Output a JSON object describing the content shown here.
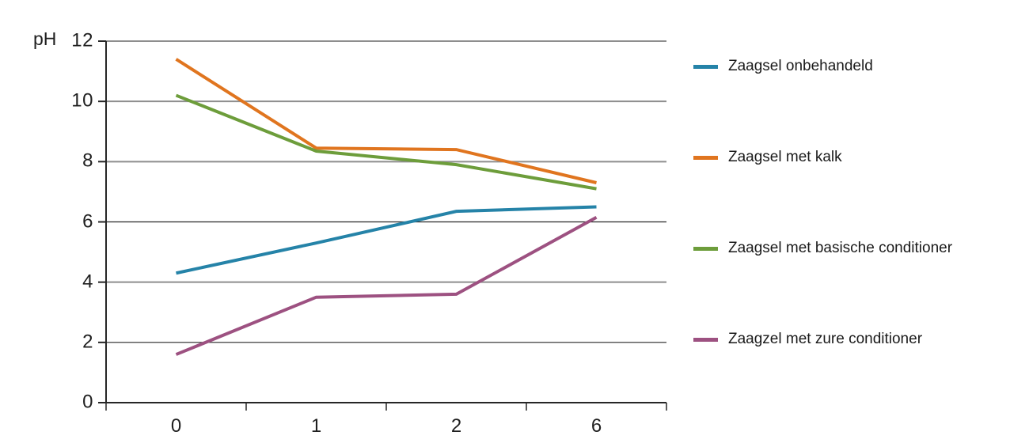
{
  "chart_data": {
    "type": "line",
    "title": "",
    "ylabel": "pH",
    "xlabel": "",
    "x_categories": [
      "0",
      "1",
      "2",
      "6"
    ],
    "y_ticks": [
      12,
      10,
      8,
      6,
      4,
      2,
      0
    ],
    "ylim": [
      0,
      12
    ],
    "grid": true,
    "legend_position": "right",
    "colors": {
      "grid_gray": "#8e8e8e",
      "grid_dark": "#262626",
      "axis": "#262626",
      "text": "#1f1f1f"
    },
    "series": [
      {
        "name": "Zaagsel onbehandeld",
        "color": "#2583a8",
        "values": [
          4.3,
          5.3,
          6.35,
          6.5
        ]
      },
      {
        "name": "Zaagsel met kalk",
        "color": "#e0751f",
        "values": [
          11.4,
          8.45,
          8.4,
          7.3
        ]
      },
      {
        "name": "Zaagsel met basische conditioner",
        "color": "#6d9d3b",
        "values": [
          10.2,
          8.35,
          7.9,
          7.1
        ]
      },
      {
        "name": "Zaagzel met zure conditioner",
        "color": "#9d5181",
        "values": [
          1.6,
          3.5,
          3.6,
          6.15
        ]
      }
    ]
  }
}
